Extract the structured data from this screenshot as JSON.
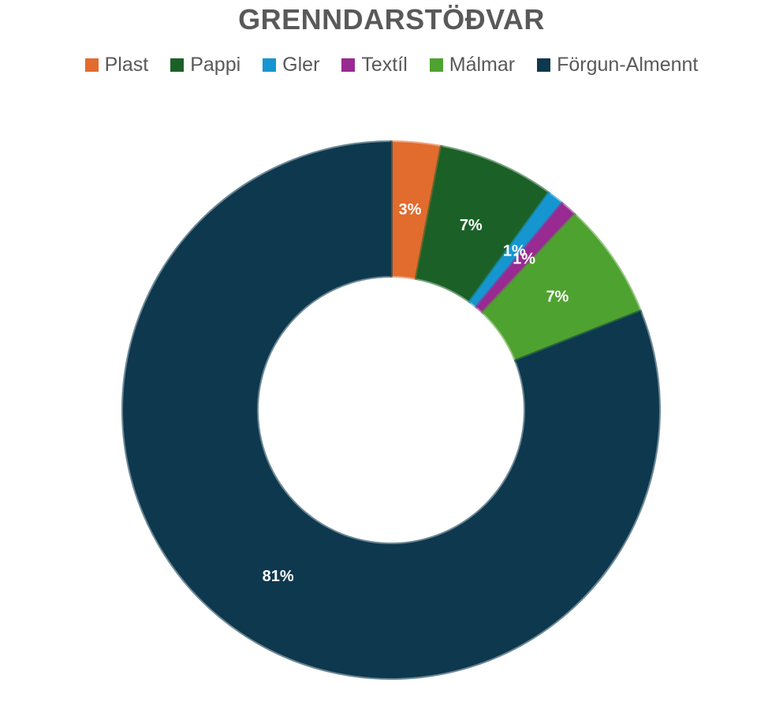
{
  "chart_data": {
    "type": "pie",
    "variant": "donut",
    "title": "GRENNDARSTÖÐVAR",
    "legend_position": "top",
    "categories": [
      "Plast",
      "Pappi",
      "Gler",
      "Textíl",
      "Málmar",
      "Förgun-Almennt"
    ],
    "values": [
      3,
      7,
      1,
      1,
      7,
      81
    ],
    "units": "%",
    "data_labels": [
      "3%",
      "7%",
      "1%",
      "1%",
      "7%",
      "81%"
    ],
    "colors": [
      "#E26B2E",
      "#1B6127",
      "#1596D1",
      "#982A92",
      "#4EA22F",
      "#0E384E"
    ]
  }
}
